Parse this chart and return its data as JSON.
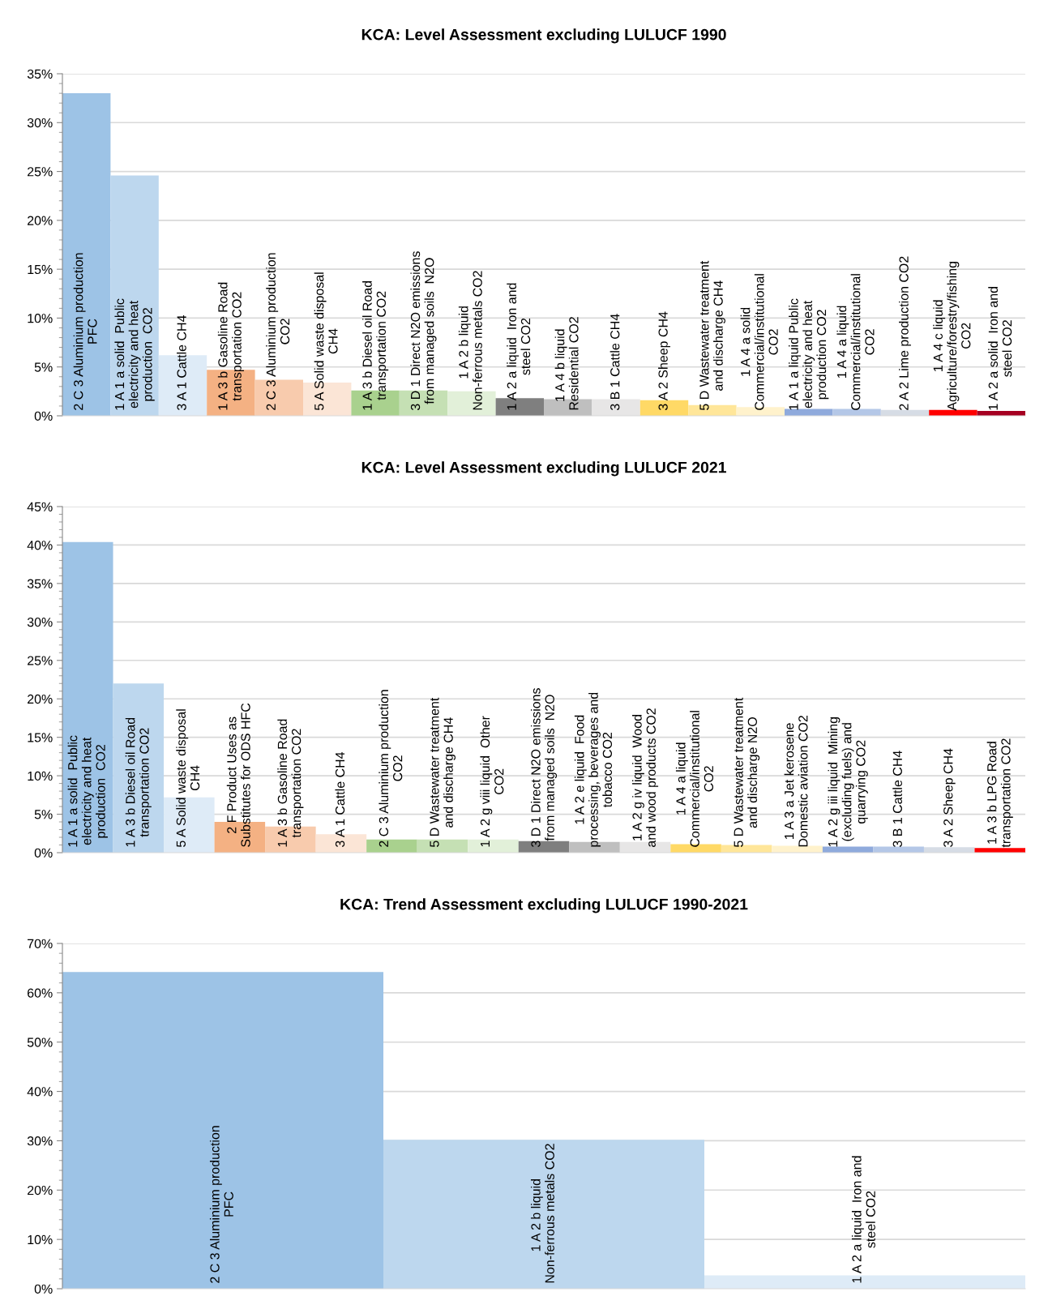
{
  "chart_data": [
    {
      "type": "bar",
      "title": "KCA: Level Assessment excluding LULUCF 1990",
      "categories": [
        "2 C 3 Aluminium production PFC",
        "1 A 1 a solid  Public electricity and heat production  CO2",
        "3 A 1 Cattle CH4",
        "1 A 3 b Gasoline Road transportation CO2",
        "2 C 3 Aluminium production CO2",
        "5 A Solid waste disposal CH4",
        "1 A 3 b Diesel oil Road transportation CO2",
        "3 D 1 Direct N2O emissions from managed soils  N2O",
        "1 A 2 b liquid  Non-ferrous metals CO2",
        "1 A 2 a liquid  Iron and steel CO2",
        "1 A 4 b liquid  Residential CO2",
        "3 B 1 Cattle CH4",
        "3 A 2 Sheep CH4",
        "5 D Wastewater treatment and discharge CH4",
        "1 A 4 a solid Commercial/institutional CO2",
        "1 A 1 a liquid Public electricity and heat production CO2",
        "1 A 4 a liquid Commercial/institutional CO2",
        "2 A 2 Lime production CO2",
        "1 A 4 c liquid Agriculture/forestry/fishing CO2",
        "1 A 2 a solid  Iron and steel CO2"
      ],
      "values": [
        33.0,
        24.6,
        6.2,
        4.7,
        3.7,
        3.4,
        2.6,
        2.6,
        2.5,
        1.8,
        1.7,
        1.7,
        1.6,
        1.1,
        0.9,
        0.7,
        0.7,
        0.6,
        0.6,
        0.5
      ],
      "colors": [
        "#9dc3e6",
        "#bdd7ee",
        "#deebf7",
        "#f4b183",
        "#f8cbad",
        "#fbe5d6",
        "#a9d18e",
        "#c5e0b4",
        "#e2f0d9",
        "#7f7f7f",
        "#bfbfbf",
        "#e7e6e6",
        "#ffd966",
        "#ffe699",
        "#fff2cc",
        "#8faadc",
        "#b4c7e7",
        "#d6dce5",
        "#ff0000",
        "#a50021"
      ],
      "ylim": [
        0,
        35
      ],
      "yticks": [
        {
          "value": 0,
          "label": "0%"
        },
        {
          "value": 5,
          "label": "5%"
        },
        {
          "value": 10,
          "label": "10%"
        },
        {
          "value": 15,
          "label": "15%"
        },
        {
          "value": 20,
          "label": "20%"
        },
        {
          "value": 25,
          "label": "25%"
        },
        {
          "value": 30,
          "label": "30%"
        },
        {
          "value": 35,
          "label": "35%"
        }
      ],
      "grid": "y",
      "legend": false,
      "tick_labels": "y"
    },
    {
      "type": "bar",
      "title": "KCA: Level Assessment excluding LULUCF 2021",
      "categories": [
        "1 A 1 a solid  Public electricity and heat production  CO2",
        "1 A 3 b Diesel oil Road transportation CO2",
        "5 A Solid waste disposal CH4",
        "2 F Product Uses as Substitutes for ODS HFC",
        "1 A 3 b Gasoline Road transportation CO2",
        "3 A 1 Cattle CH4",
        "2 C 3 Aluminium production CO2",
        "5 D Wastewater treatment and discharge CH4",
        "1 A 2 g viii liquid  Other CO2",
        "3 D 1 Direct N2O emissions from managed soils  N2O",
        "1 A 2 e liquid  Food processing, beverages and tobacco CO2",
        "1 A 2 g iv liquid  Wood and wood products CO2",
        "1 A 4 a liquid Commercial/institutional CO2",
        "5 D Wastewater treatment and discharge N2O",
        "1 A 3 a Jet kerosene Domestic aviation CO2",
        "1 A 2 g iii liquid  Mining (excluding fuels) and quarrying CO2",
        "3 B 1 Cattle CH4",
        "3 A 2 Sheep CH4",
        "1 A 3 b LPG Road transportation CO2"
      ],
      "values": [
        40.4,
        22.0,
        7.2,
        4.0,
        3.4,
        2.4,
        1.7,
        1.7,
        1.7,
        1.5,
        1.4,
        1.4,
        1.1,
        1.0,
        0.9,
        0.8,
        0.8,
        0.7,
        0.6
      ],
      "colors": [
        "#9dc3e6",
        "#bdd7ee",
        "#deebf7",
        "#f4b183",
        "#f8cbad",
        "#fbe5d6",
        "#a9d18e",
        "#c5e0b4",
        "#e2f0d9",
        "#7f7f7f",
        "#bfbfbf",
        "#e7e6e6",
        "#ffd966",
        "#ffe699",
        "#fff2cc",
        "#8faadc",
        "#b4c7e7",
        "#d6dce5",
        "#ff0000"
      ],
      "ylim": [
        0,
        45
      ],
      "yticks": [
        {
          "value": 0,
          "label": "0%"
        },
        {
          "value": 5,
          "label": "5%"
        },
        {
          "value": 10,
          "label": "10%"
        },
        {
          "value": 15,
          "label": "15%"
        },
        {
          "value": 20,
          "label": "20%"
        },
        {
          "value": 25,
          "label": "25%"
        },
        {
          "value": 30,
          "label": "30%"
        },
        {
          "value": 35,
          "label": "35%"
        },
        {
          "value": 40,
          "label": "40%"
        },
        {
          "value": 45,
          "label": "45%"
        }
      ],
      "grid": "y",
      "legend": false,
      "tick_labels": "y"
    },
    {
      "type": "bar",
      "title": "KCA: Trend Assessment excluding LULUCF 1990-2021",
      "categories": [
        "2 C 3 Aluminium production PFC",
        "1 A 2 b liquid  Non-ferrous metals CO2",
        "1 A 2 a liquid  Iron and steel CO2"
      ],
      "values": [
        64.2,
        30.2,
        2.7
      ],
      "colors": [
        "#9dc3e6",
        "#bdd7ee",
        "#deebf7"
      ],
      "ylim": [
        0,
        70
      ],
      "yticks": [
        {
          "value": 0,
          "label": "0%"
        },
        {
          "value": 10,
          "label": "10%"
        },
        {
          "value": 20,
          "label": "20%"
        },
        {
          "value": 30,
          "label": "30%"
        },
        {
          "value": 40,
          "label": "40%"
        },
        {
          "value": 50,
          "label": "50%"
        },
        {
          "value": 60,
          "label": "60%"
        },
        {
          "value": 70,
          "label": "70%"
        }
      ],
      "grid": "y",
      "legend": false,
      "tick_labels": "y"
    }
  ]
}
